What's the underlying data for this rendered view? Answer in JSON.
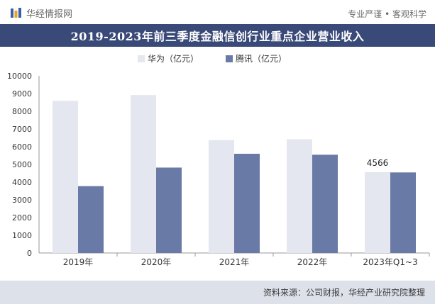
{
  "header": {
    "brand_name": "华经情报网",
    "slogan": "专业严谨 • 客观科学",
    "brand_icon": "hj-logo-icon"
  },
  "title": "2019-2023年前三季度金融信创行业重点企业营业收入",
  "source": "资料来源：公司财报，华经产业研究院整理",
  "colors": {
    "huawei": "#e4e7ef",
    "tencent": "#6a7aa6",
    "titlebar": "#3a4a78",
    "footer": "#dde1ea"
  },
  "chart_data": {
    "type": "bar",
    "title": "2019-2023年前三季度金融信创行业重点企业营业收入",
    "categories": [
      "2019年",
      "2020年",
      "2021年",
      "2022年",
      "2023年Q1~3"
    ],
    "series": [
      {
        "name": "华为（亿元）",
        "values": [
          8588,
          8914,
          6368,
          6423,
          4566
        ]
      },
      {
        "name": "腾讯（亿元）",
        "values": [
          3773,
          4821,
          5601,
          5546,
          4547
        ]
      }
    ],
    "data_labels": [
      {
        "category": "2023年Q1~3",
        "series": "华为（亿元）",
        "text": "4566"
      }
    ],
    "ylim": [
      0,
      10000
    ],
    "yticks": [
      0,
      1000,
      2000,
      3000,
      4000,
      5000,
      6000,
      7000,
      8000,
      9000,
      10000
    ],
    "xlabel": "",
    "ylabel": "",
    "legend": "top-center",
    "grid": false
  }
}
